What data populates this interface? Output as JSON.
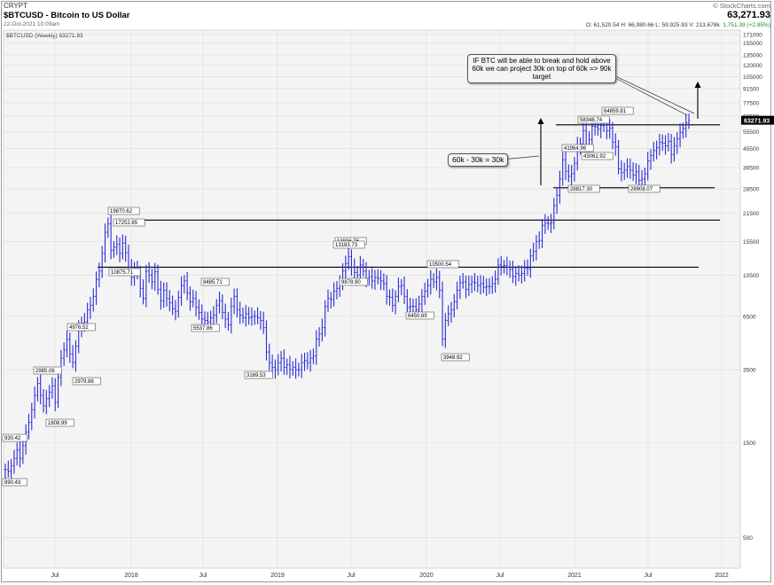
{
  "header": {
    "exchange": "CRYPT",
    "title": "$BTCUSD - Bitcoin to US Dollar",
    "date": "22-Oct-2021 10:09am",
    "brand": "© StockCharts.com",
    "last": "63,271.93",
    "ohlc": "O: 61,520.54   H: 66,980.66   L: 59,925.93   V: 213.678k",
    "change": "1,751.39 (+2.85%)",
    "legend": "$BTCUSD (Weekly) 63271.93"
  },
  "annotations": {
    "note1": "IF BTC will be able to break and hold above 60k we can project 30k on top of 60k => 90k target",
    "note2": "60k - 30k = 30k"
  },
  "colors": {
    "bar": "#2b2bd6",
    "plot_bg": "#f4f4f4",
    "grid": "#dcdcdc",
    "line": "#000000"
  },
  "chart_data": {
    "type": "line",
    "title": "$BTCUSD (Weekly) 63271.93",
    "y_scale": "log",
    "y_ticks": [
      500,
      1500,
      3500,
      6500,
      10500,
      15500,
      21500,
      28500,
      36500,
      45500,
      55500,
      66500,
      77500,
      91500,
      105000,
      120000,
      135000,
      155000,
      171000
    ],
    "x_ticks": [
      "Jul",
      "2018",
      "Jul",
      "2019",
      "Jul",
      "2020",
      "Jul",
      "2021",
      "Jul",
      "2022"
    ],
    "ylim": [
      350,
      180000
    ],
    "grid": true,
    "last_value_label": "63271.93",
    "series": [
      {
        "values": [
          1100,
          1080,
          1150,
          1250,
          1380,
          1250,
          1450,
          1700,
          1900,
          2200,
          2600,
          2985,
          2600,
          2300,
          2500,
          2700,
          2900,
          2400,
          3200,
          4000,
          4400,
          4976,
          4200,
          3800,
          4600,
          5600,
          6000,
          6100,
          7000,
          7400,
          8200,
          10000,
          11000,
          13500,
          17250,
          19000,
          14000,
          14500,
          15000,
          13500,
          15200,
          13600,
          11500,
          10200,
          11200,
          10800,
          9000,
          8000,
          11000,
          10500,
          9700,
          10900,
          8900,
          7800,
          8800,
          8000,
          7600,
          7100,
          6900,
          8100,
          9300,
          9800,
          8500,
          7700,
          8000,
          7200,
          6800,
          6300,
          6200,
          6100,
          6400,
          6600,
          7400,
          7800,
          6800,
          6300,
          5900,
          7300,
          8200,
          7000,
          6600,
          6400,
          6700,
          6400,
          6500,
          6500,
          6400,
          6200,
          5700,
          4300,
          3800,
          3600,
          3500,
          3800,
          4000,
          3600,
          3700,
          3500,
          3600,
          3500,
          3500,
          3800,
          3900,
          3800,
          4000,
          4100,
          5000,
          5300,
          5700,
          7300,
          8000,
          7900,
          8700,
          9000,
          9500,
          11000,
          12000,
          13000,
          11500,
          10800,
          10500,
          11800,
          11000,
          10100,
          10300,
          9800,
          10200,
          10100,
          9800,
          9500,
          8200,
          8100,
          7400,
          8200,
          9200,
          9300,
          8200,
          7200,
          7300,
          7300,
          7000,
          7500,
          8200,
          8700,
          9300,
          10000,
          9700,
          10200,
          8800,
          5000,
          6200,
          6700,
          7000,
          7700,
          8800,
          9600,
          9700,
          8900,
          9400,
          9700,
          9600,
          9300,
          9500,
          9100,
          9200,
          9200,
          9500,
          10000,
          11800,
          11600,
          11700,
          11500,
          11200,
          10300,
          10700,
          10500,
          10700,
          11400,
          11300,
          13100,
          13800,
          15500,
          15700,
          18700,
          19200,
          19000,
          19300,
          23500,
          26500,
          32000,
          40000,
          35000,
          33000,
          34000,
          38500,
          47000,
          48000,
          56000,
          46000,
          50500,
          59000,
          58500,
          57000,
          59500,
          60000,
          56000,
          57800,
          49000,
          46500,
          36000,
          34500,
          35500,
          37000,
          35500,
          33500,
          34800,
          31500,
          32000,
          34000,
          39500,
          42000,
          44500,
          46000,
          49000,
          48500,
          47000,
          49500,
          42500,
          47000,
          51000,
          55000,
          57500,
          61500,
          63272
        ]
      }
    ],
    "point_labels": [
      "930.42",
      "890.43",
      "2985.06",
      "2979.88",
      "1808.99",
      "4976.52",
      "19870.62",
      "17252.85",
      "10875.71",
      "8485.71",
      "5537.86",
      "3169.53",
      "13836.76",
      "13183.73",
      "9878.90",
      "6450.69",
      "10500.54",
      "3948.92",
      "41964.96",
      "58348.74",
      "64859.81",
      "43061.92",
      "28817.30",
      "28908.07"
    ],
    "horizontal_levels": [
      {
        "value": 11500
      },
      {
        "value": 19870
      },
      {
        "value": 28900
      },
      {
        "value": 60000
      }
    ]
  }
}
